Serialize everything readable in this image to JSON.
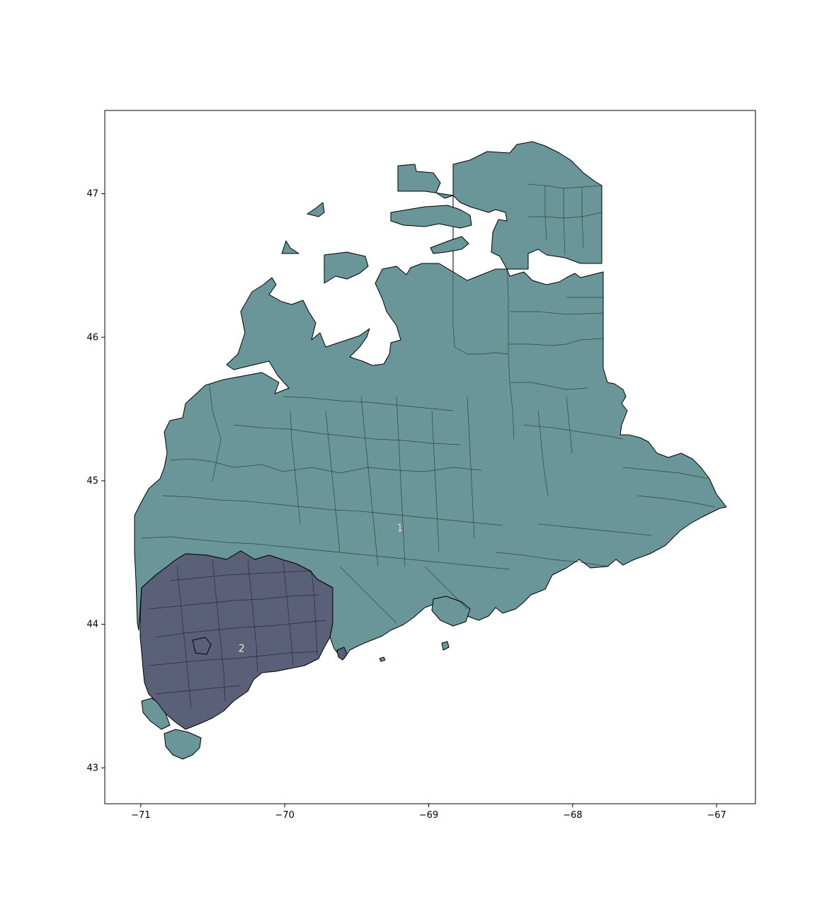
{
  "map": {
    "x_ticks": [
      "−71",
      "−70",
      "−69",
      "−68",
      "−67"
    ],
    "y_ticks": [
      "43",
      "44",
      "45",
      "46",
      "47"
    ],
    "x_values": [
      -71,
      -70,
      -69,
      -68,
      -67
    ],
    "y_values": [
      43,
      44,
      45,
      46,
      47
    ],
    "x_range": [
      -71.25,
      -66.73
    ],
    "y_range": [
      42.75,
      47.58
    ],
    "districts": [
      {
        "label": "1",
        "color": "#6a9699",
        "center": [
          -69.2,
          44.67
        ]
      },
      {
        "label": "2",
        "color": "#5b6079",
        "center": [
          -70.3,
          43.83
        ]
      }
    ]
  }
}
